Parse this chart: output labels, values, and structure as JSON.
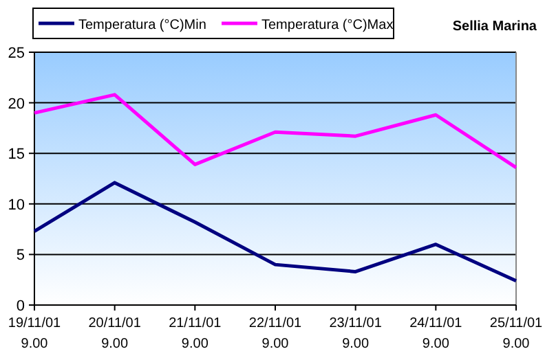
{
  "chart_data": {
    "type": "line",
    "title": "Sellia Marina",
    "categories": [
      "19/11/01\n9.00",
      "20/11/01\n9.00",
      "21/11/01\n9.00",
      "22/11/01\n9.00",
      "23/11/01\n9.00",
      "24/11/01\n9.00",
      "25/11/01\n9.00"
    ],
    "series": [
      {
        "name": "Temperatura (°C)Min",
        "color": "#000080",
        "values": [
          7.3,
          12.1,
          8.2,
          4.0,
          3.3,
          6.0,
          2.4
        ]
      },
      {
        "name": "Temperatura (°C)Max",
        "color": "#ff00ff",
        "values": [
          19,
          20.8,
          13.9,
          17.1,
          16.7,
          18.8,
          13.6
        ]
      }
    ],
    "ylim": [
      0,
      25
    ],
    "yticks": [
      0,
      5,
      10,
      15,
      20,
      25
    ],
    "grid": "y",
    "legend": "top",
    "marker": "none",
    "line_style": "solid"
  }
}
